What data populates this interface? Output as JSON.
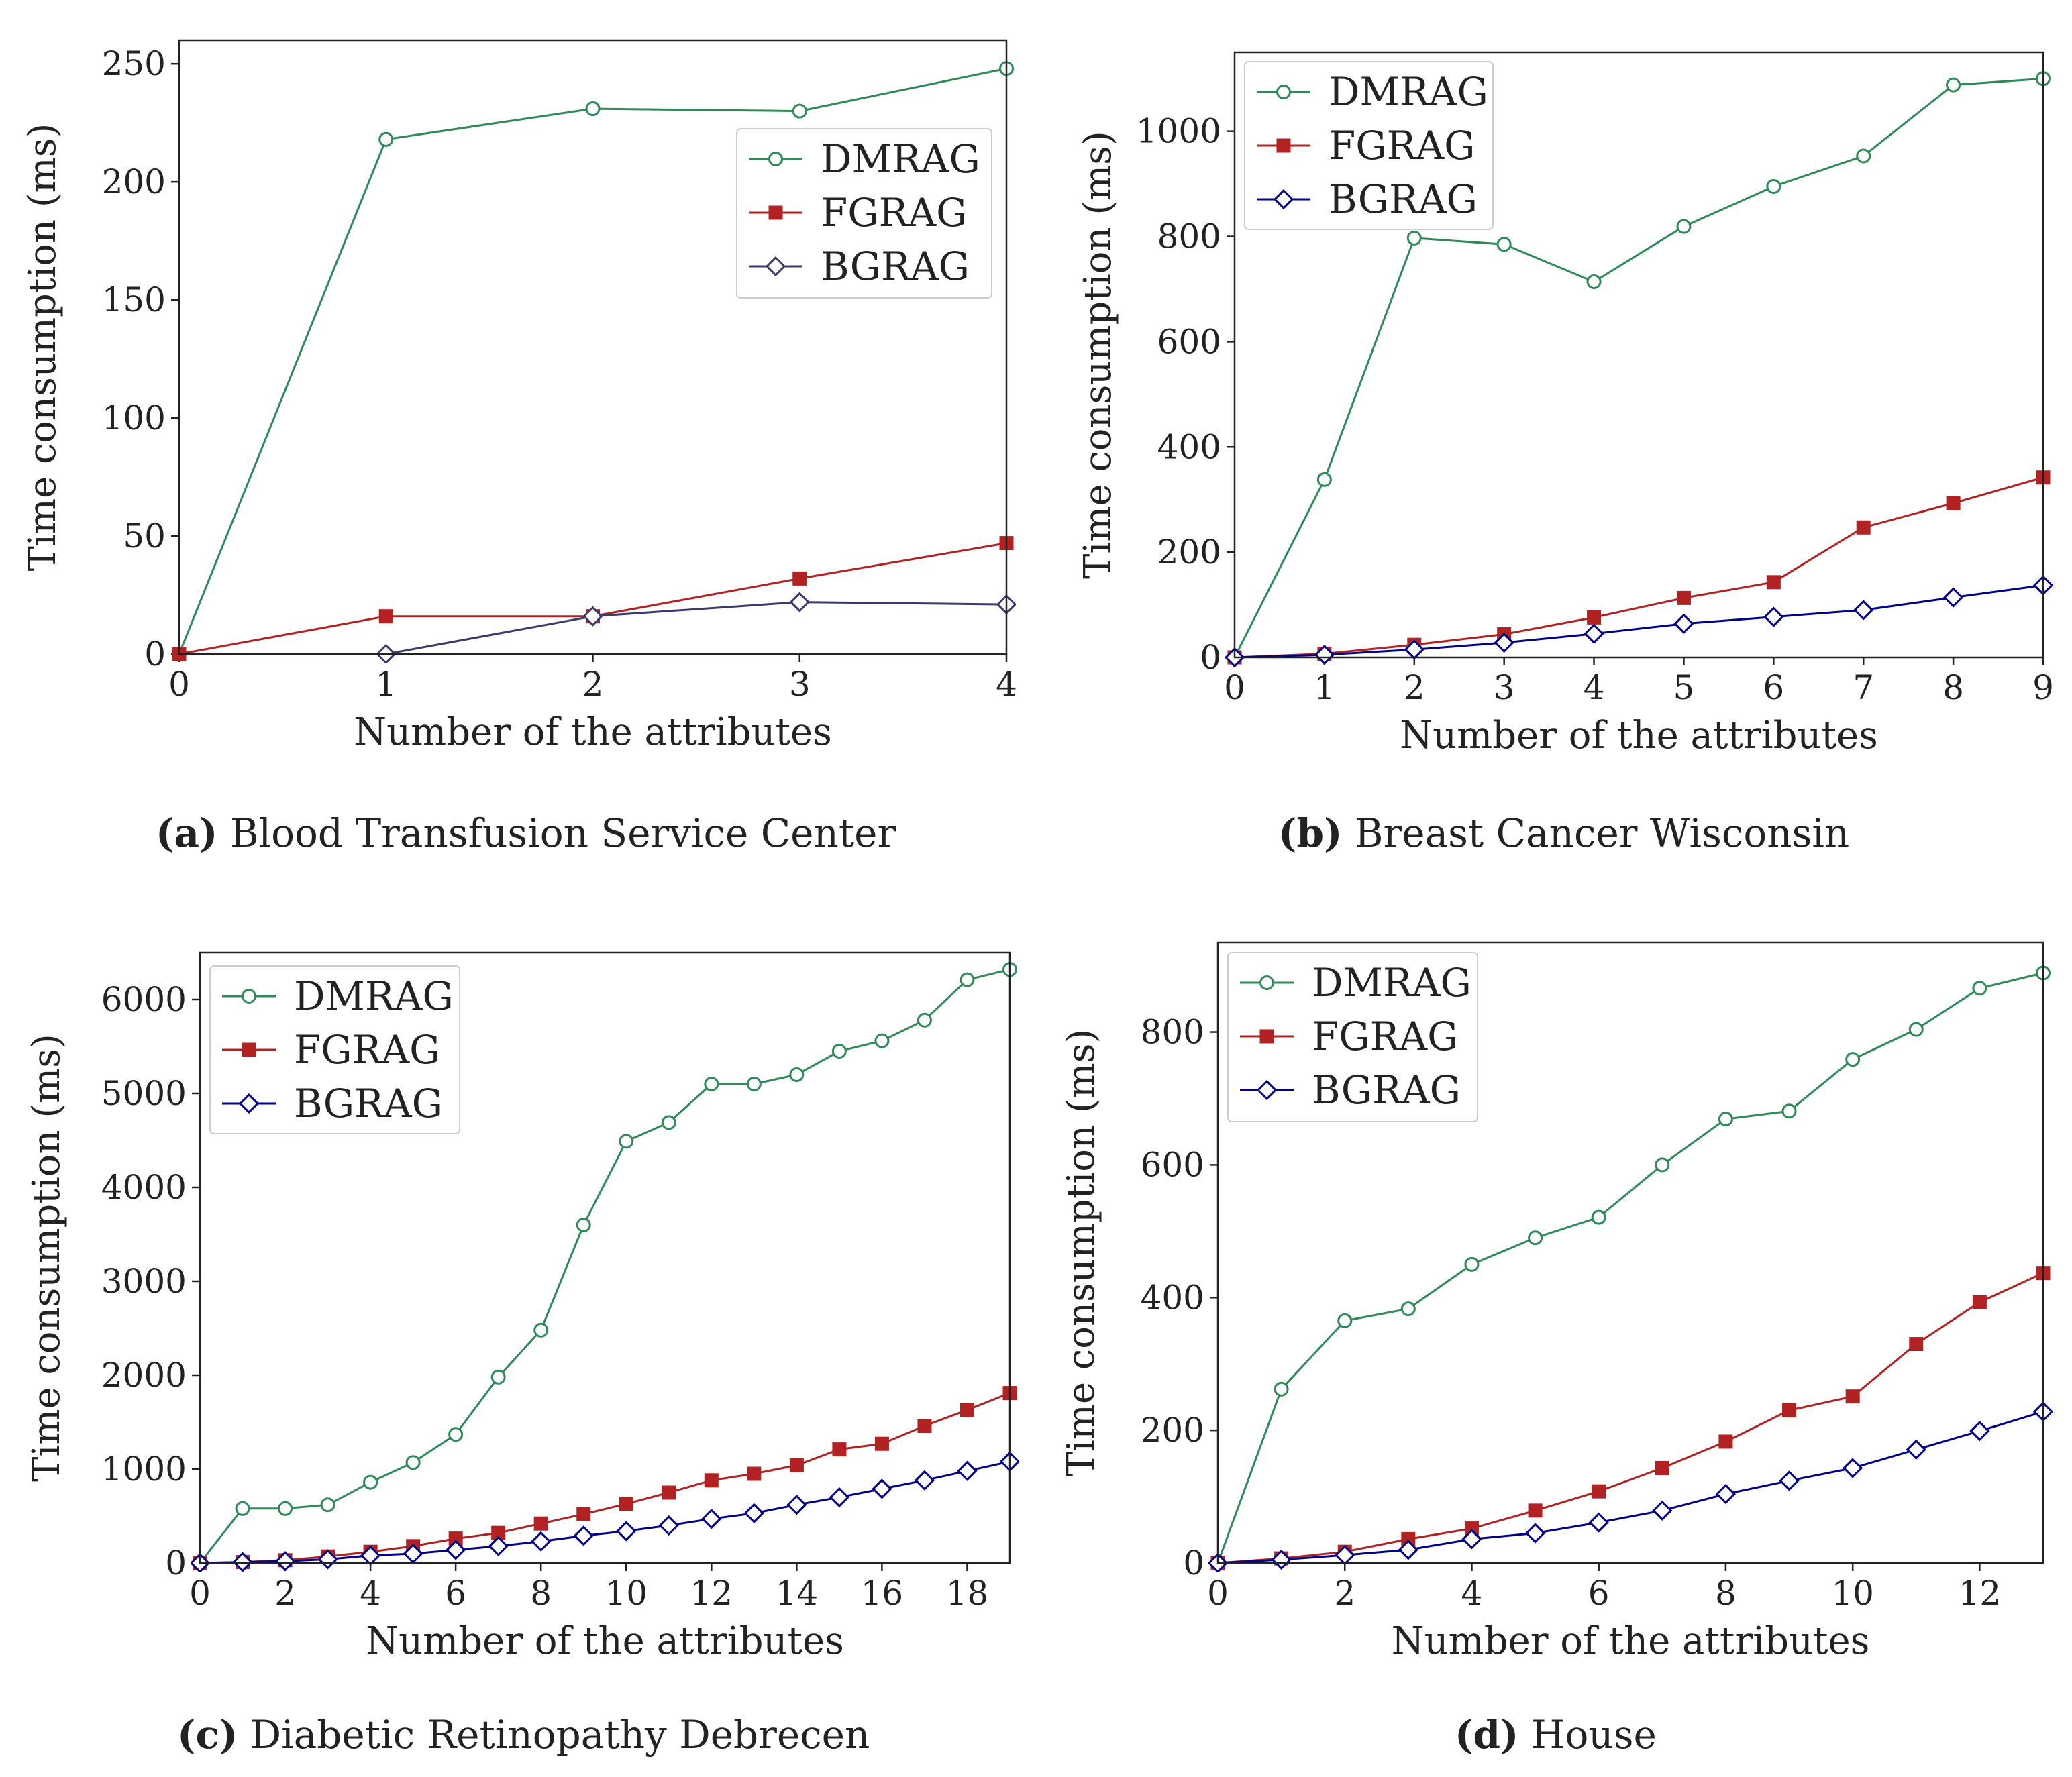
{
  "colors": {
    "DMRAG": "#2e8b57",
    "FGRAG": "#b22222",
    "BGRAG": "#00008b",
    "BGRAG_a": "#3b3b6b"
  },
  "chart_data": [
    {
      "id": "a",
      "type": "line",
      "caption_letter": "(a)",
      "caption_text": "Blood Transfusion Service Center",
      "xlabel": "Number of the attributes",
      "ylabel": "Time consumption (ms)",
      "xlim": [
        0,
        4
      ],
      "ylim": [
        0,
        260
      ],
      "xticks": [
        0,
        1,
        2,
        3,
        4
      ],
      "yticks": [
        0,
        50,
        100,
        150,
        200,
        250
      ],
      "legend_position": "right-middle",
      "series": [
        {
          "name": "DMRAG",
          "marker": "circle",
          "x": [
            0,
            1,
            2,
            3,
            4
          ],
          "y": [
            0,
            218,
            231,
            230,
            248
          ]
        },
        {
          "name": "FGRAG",
          "marker": "square",
          "x": [
            0,
            1,
            2,
            3,
            4
          ],
          "y": [
            0,
            16,
            16,
            32,
            47
          ]
        },
        {
          "name": "BGRAG",
          "marker": "diamond",
          "x": [
            1,
            2,
            3,
            4
          ],
          "y": [
            0,
            16,
            22,
            21
          ]
        }
      ]
    },
    {
      "id": "b",
      "type": "line",
      "caption_letter": "(b)",
      "caption_text": "Breast Cancer Wisconsin",
      "xlabel": "Number of the attributes",
      "ylabel": "Time consumption (ms)",
      "xlim": [
        0,
        9
      ],
      "ylim": [
        0,
        1150
      ],
      "xticks": [
        0,
        1,
        2,
        3,
        4,
        5,
        6,
        7,
        8,
        9
      ],
      "yticks": [
        0,
        200,
        400,
        600,
        800,
        1000
      ],
      "legend_position": "top-left",
      "series": [
        {
          "name": "DMRAG",
          "marker": "circle",
          "x": [
            0,
            1,
            2,
            3,
            4,
            5,
            6,
            7,
            8,
            9
          ],
          "y": [
            0,
            338,
            797,
            785,
            714,
            819,
            895,
            953,
            1088,
            1100
          ]
        },
        {
          "name": "FGRAG",
          "marker": "square",
          "x": [
            0,
            1,
            2,
            3,
            4,
            5,
            6,
            7,
            8,
            9
          ],
          "y": [
            0,
            7,
            24,
            44,
            76,
            113,
            143,
            247,
            293,
            342
          ]
        },
        {
          "name": "BGRAG",
          "marker": "diamond",
          "x": [
            0,
            1,
            2,
            3,
            4,
            5,
            6,
            7,
            8,
            9
          ],
          "y": [
            0,
            5,
            15,
            28,
            45,
            64,
            77,
            90,
            114,
            137
          ]
        }
      ]
    },
    {
      "id": "c",
      "type": "line",
      "caption_letter": "(c)",
      "caption_text": "Diabetic Retinopathy Debrecen",
      "xlabel": "Number of the attributes",
      "ylabel": "Time consumption (ms)",
      "xlim": [
        0,
        19
      ],
      "ylim": [
        0,
        6500
      ],
      "xticks": [
        0,
        2,
        4,
        6,
        8,
        10,
        12,
        14,
        16,
        18
      ],
      "yticks": [
        0,
        1000,
        2000,
        3000,
        4000,
        5000,
        6000
      ],
      "legend_position": "top-left",
      "series": [
        {
          "name": "DMRAG",
          "marker": "circle",
          "x": [
            0,
            1,
            2,
            3,
            4,
            5,
            6,
            7,
            8,
            9,
            10,
            11,
            12,
            13,
            14,
            15,
            16,
            17,
            18,
            19
          ],
          "y": [
            0,
            580,
            580,
            620,
            860,
            1070,
            1370,
            1980,
            2480,
            3600,
            4490,
            4690,
            5100,
            5100,
            5200,
            5450,
            5560,
            5780,
            6210,
            6320
          ]
        },
        {
          "name": "FGRAG",
          "marker": "square",
          "x": [
            0,
            1,
            2,
            3,
            4,
            5,
            6,
            7,
            8,
            9,
            10,
            11,
            12,
            13,
            14,
            15,
            16,
            17,
            18,
            19
          ],
          "y": [
            0,
            10,
            30,
            70,
            120,
            180,
            260,
            320,
            420,
            520,
            630,
            750,
            880,
            950,
            1040,
            1210,
            1270,
            1460,
            1630,
            1810
          ]
        },
        {
          "name": "BGRAG",
          "marker": "diamond",
          "x": [
            0,
            1,
            2,
            3,
            4,
            5,
            6,
            7,
            8,
            9,
            10,
            11,
            12,
            13,
            14,
            15,
            16,
            17,
            18,
            19
          ],
          "y": [
            0,
            10,
            20,
            40,
            80,
            100,
            140,
            180,
            230,
            290,
            340,
            400,
            470,
            530,
            620,
            700,
            790,
            880,
            980,
            1080
          ]
        }
      ]
    },
    {
      "id": "d",
      "type": "line",
      "caption_letter": "(d)",
      "caption_text": "House",
      "xlabel": "Number of the attributes",
      "ylabel": "Time consumption (ms)",
      "xlim": [
        0,
        13
      ],
      "ylim": [
        0,
        935
      ],
      "xticks": [
        0,
        2,
        4,
        6,
        8,
        10,
        12
      ],
      "yticks": [
        0,
        200,
        400,
        600,
        800
      ],
      "legend_position": "top-left",
      "series": [
        {
          "name": "DMRAG",
          "marker": "circle",
          "x": [
            0,
            1,
            2,
            3,
            4,
            5,
            6,
            7,
            8,
            9,
            10,
            11,
            12,
            13
          ],
          "y": [
            0,
            262,
            365,
            383,
            450,
            490,
            521,
            600,
            669,
            681,
            759,
            804,
            866,
            889
          ]
        },
        {
          "name": "FGRAG",
          "marker": "square",
          "x": [
            0,
            1,
            2,
            3,
            4,
            5,
            6,
            7,
            8,
            9,
            10,
            11,
            12,
            13
          ],
          "y": [
            0,
            7,
            17,
            36,
            52,
            79,
            108,
            143,
            183,
            230,
            251,
            330,
            393,
            437
          ]
        },
        {
          "name": "BGRAG",
          "marker": "diamond",
          "x": [
            0,
            1,
            2,
            3,
            4,
            5,
            6,
            7,
            8,
            9,
            10,
            11,
            12,
            13
          ],
          "y": [
            0,
            5,
            12,
            20,
            36,
            45,
            61,
            79,
            104,
            124,
            143,
            171,
            199,
            228
          ]
        }
      ]
    }
  ]
}
